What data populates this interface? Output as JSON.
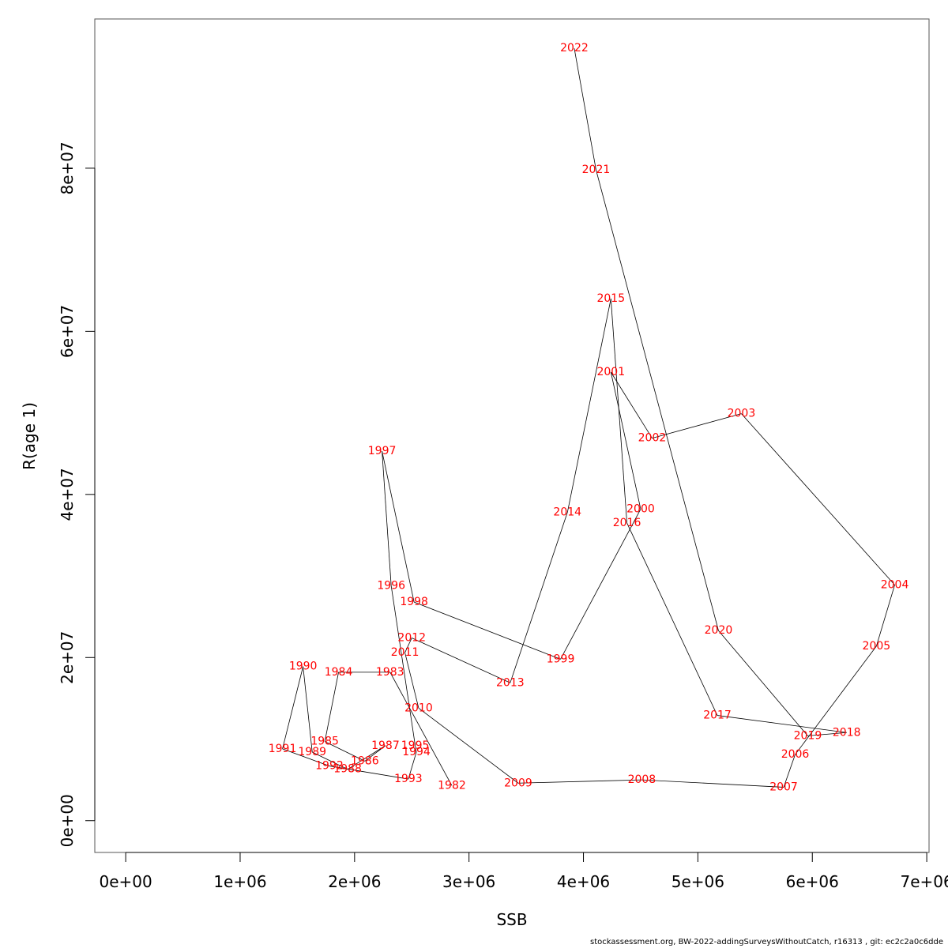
{
  "chart_data": {
    "type": "line",
    "title": "",
    "xlabel": "SSB",
    "ylabel": "R(age 1)",
    "xlim": [
      -270000,
      7020000
    ],
    "ylim": [
      -3900000,
      98300000
    ],
    "x_ticks": [
      0,
      1000000,
      2000000,
      3000000,
      4000000,
      5000000,
      6000000,
      7000000
    ],
    "x_tick_labels": [
      "0e+00",
      "1e+06",
      "2e+06",
      "3e+06",
      "4e+06",
      "5e+06",
      "6e+06",
      "7e+06"
    ],
    "y_ticks": [
      0,
      20000000,
      40000000,
      60000000,
      80000000
    ],
    "y_tick_labels": [
      "0e+00",
      "2e+07",
      "4e+07",
      "6e+07",
      "8e+07"
    ],
    "grid": false,
    "line_color": "#000000",
    "label_color": "#ff0000",
    "points": [
      {
        "label": "1982",
        "x": 2850000,
        "y": 4300000
      },
      {
        "label": "1983",
        "x": 2310000,
        "y": 18200000
      },
      {
        "label": "1984",
        "x": 1860000,
        "y": 18200000
      },
      {
        "label": "1985",
        "x": 1740000,
        "y": 9700000
      },
      {
        "label": "1986",
        "x": 2090000,
        "y": 7300000
      },
      {
        "label": "1987",
        "x": 2270000,
        "y": 9200000
      },
      {
        "label": "1988",
        "x": 1940000,
        "y": 6300000
      },
      {
        "label": "1989",
        "x": 1630000,
        "y": 8400000
      },
      {
        "label": "1990",
        "x": 1550000,
        "y": 18900000
      },
      {
        "label": "1991",
        "x": 1370000,
        "y": 8800000
      },
      {
        "label": "1992",
        "x": 1780000,
        "y": 6700000
      },
      {
        "label": "1993",
        "x": 2470000,
        "y": 5100000
      },
      {
        "label": "1994",
        "x": 2540000,
        "y": 8400000
      },
      {
        "label": "1995",
        "x": 2530000,
        "y": 9200000
      },
      {
        "label": "1996",
        "x": 2320000,
        "y": 28800000
      },
      {
        "label": "1997",
        "x": 2240000,
        "y": 45300000
      },
      {
        "label": "1998",
        "x": 2520000,
        "y": 26800000
      },
      {
        "label": "1999",
        "x": 3800000,
        "y": 19800000
      },
      {
        "label": "2000",
        "x": 4500000,
        "y": 38200000
      },
      {
        "label": "2001",
        "x": 4240000,
        "y": 55000000
      },
      {
        "label": "2002",
        "x": 4600000,
        "y": 46900000
      },
      {
        "label": "2003",
        "x": 5380000,
        "y": 49900000
      },
      {
        "label": "2004",
        "x": 6720000,
        "y": 28900000
      },
      {
        "label": "2005",
        "x": 6560000,
        "y": 21400000
      },
      {
        "label": "2006",
        "x": 5850000,
        "y": 8100000
      },
      {
        "label": "2007",
        "x": 5750000,
        "y": 4100000
      },
      {
        "label": "2008",
        "x": 4510000,
        "y": 5000000
      },
      {
        "label": "2009",
        "x": 3430000,
        "y": 4600000
      },
      {
        "label": "2010",
        "x": 2560000,
        "y": 13800000
      },
      {
        "label": "2011",
        "x": 2440000,
        "y": 20600000
      },
      {
        "label": "2012",
        "x": 2500000,
        "y": 22400000
      },
      {
        "label": "2013",
        "x": 3360000,
        "y": 16900000
      },
      {
        "label": "2014",
        "x": 3860000,
        "y": 37800000
      },
      {
        "label": "2015",
        "x": 4240000,
        "y": 64000000
      },
      {
        "label": "2016",
        "x": 4380000,
        "y": 36500000
      },
      {
        "label": "2017",
        "x": 5170000,
        "y": 12900000
      },
      {
        "label": "2018",
        "x": 6300000,
        "y": 10800000
      },
      {
        "label": "2019",
        "x": 5960000,
        "y": 10400000
      },
      {
        "label": "2020",
        "x": 5180000,
        "y": 23300000
      },
      {
        "label": "2021",
        "x": 4110000,
        "y": 79800000
      },
      {
        "label": "2022",
        "x": 3920000,
        "y": 94700000
      }
    ]
  },
  "footer": {
    "note": "stockassessment.org, BW-2022-addingSurveysWithoutCatch, r16313 , git: ec2c2a0c6dde"
  }
}
